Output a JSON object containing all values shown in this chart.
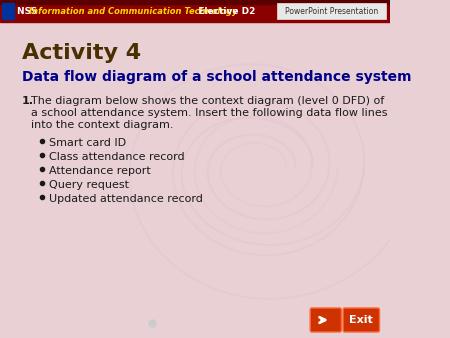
{
  "header_bg_color": "#8B0000",
  "header_text_nss": "NSS ",
  "header_text_ict": "Information and Communication Technology",
  "header_text_elective": "  Elective D2",
  "header_right_text": "PowerPoint Presentation",
  "header_right_bg": "#e8e8e8",
  "slide_bg_color": "#e8d0d5",
  "title": "Activity 4",
  "title_color": "#4a3000",
  "subtitle": "Data flow diagram of a school attendance system",
  "subtitle_color": "#00008B",
  "body_text": "1.  The diagram below shows the context diagram (level 0 DFD) of\n    a school attendance system. Insert the following data flow lines\n    into the context diagram.",
  "body_color": "#1a1a1a",
  "bullet_items": [
    "Smart card ID",
    "Class attendance record",
    "Attendance report",
    "Query request",
    "Updated attendance record"
  ],
  "bullet_color": "#1a1a1a",
  "nav_button_color": "#cc3300",
  "nav_arrow_color": "#ffffff",
  "exit_text": "Exit",
  "footer_dot_color": "#cccccc"
}
